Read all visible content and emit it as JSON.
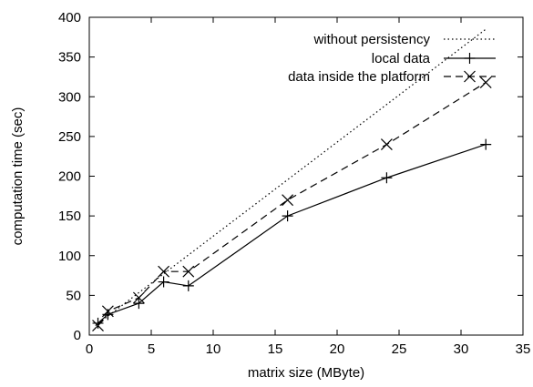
{
  "chart_data": {
    "type": "line",
    "title": "",
    "xlabel": "matrix size (MByte)",
    "ylabel": "computation time (sec)",
    "xlim": [
      0,
      35
    ],
    "ylim": [
      0,
      400
    ],
    "xticks": [
      0,
      5,
      10,
      15,
      20,
      25,
      30,
      35
    ],
    "yticks": [
      0,
      50,
      100,
      150,
      200,
      250,
      300,
      350,
      400
    ],
    "grid": false,
    "legend_position": "top-right",
    "series": [
      {
        "name": "without persistency",
        "style": "dotted",
        "marker": "none",
        "color": "#000000",
        "x": [
          0.5,
          32
        ],
        "y": [
          12,
          385
        ]
      },
      {
        "name": "local data",
        "style": "solid",
        "marker": "plus",
        "color": "#000000",
        "x": [
          0.7,
          1.5,
          4,
          6,
          8,
          16,
          24,
          32
        ],
        "y": [
          15,
          26,
          40,
          67,
          62,
          150,
          198,
          240
        ]
      },
      {
        "name": "data inside the platform",
        "style": "dashed",
        "marker": "cross",
        "color": "#000000",
        "x": [
          0.7,
          1.5,
          4,
          6,
          8,
          16,
          24,
          32
        ],
        "y": [
          12,
          30,
          47,
          80,
          80,
          170,
          240,
          318
        ]
      }
    ]
  }
}
